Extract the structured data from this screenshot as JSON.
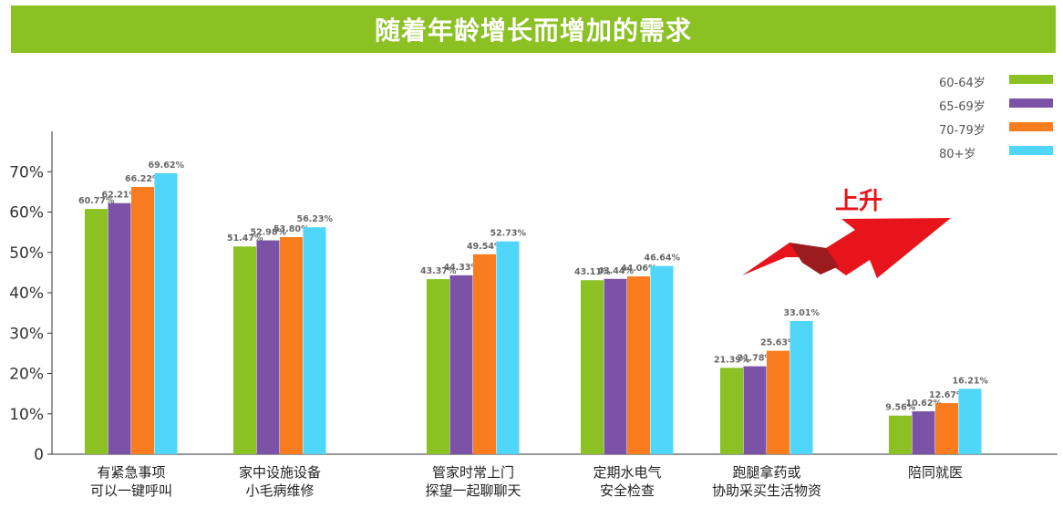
{
  "title": "随着年龄增长而增加的需求",
  "annotation": {
    "text": "上升",
    "arrow": "up-right-zigzag-arrow"
  },
  "colors": {
    "title_bg": "#8bc123",
    "series": [
      "#8bc123",
      "#7b52a5",
      "#f97d1f",
      "#4fd6f8"
    ],
    "annotation": "#e8141c"
  },
  "chart_data": {
    "type": "bar",
    "title": "随着年龄增长而增加的需求",
    "categories": [
      [
        "有紧急事项",
        "可以一键呼叫"
      ],
      [
        "家中设施设备",
        "小毛病维修"
      ],
      [
        "管家时常上门",
        "探望一起聊聊天"
      ],
      [
        "定期水电气",
        "安全检查"
      ],
      [
        "跑腿拿药或",
        "协助采买生活物资"
      ],
      [
        "陪同就医"
      ]
    ],
    "series": [
      {
        "name": "60-64岁",
        "values": [
          60.77,
          51.47,
          43.37,
          43.11,
          21.39,
          9.56
        ]
      },
      {
        "name": "65-69岁",
        "values": [
          62.21,
          52.98,
          44.33,
          43.44,
          21.78,
          10.62
        ]
      },
      {
        "name": "70-79岁",
        "values": [
          66.22,
          53.8,
          49.54,
          44.06,
          25.63,
          12.67
        ]
      },
      {
        "name": "80+岁",
        "values": [
          69.62,
          56.23,
          52.73,
          46.64,
          33.01,
          16.21
        ]
      }
    ],
    "y_ticks": [
      "0",
      "10%",
      "20%",
      "30%",
      "40%",
      "50%",
      "60%",
      "70%"
    ],
    "ylim": [
      0,
      80
    ],
    "xlabel": "",
    "ylabel": "",
    "legend_position": "top-right",
    "grid": false
  }
}
